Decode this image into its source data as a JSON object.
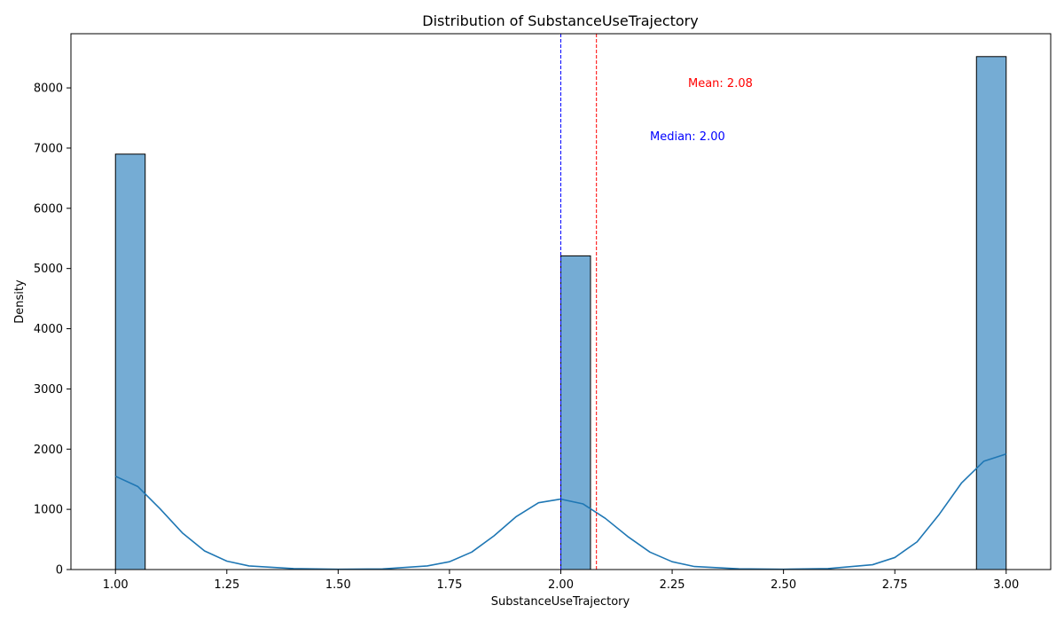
{
  "chart_data": {
    "type": "bar",
    "title": "Distribution of SubstanceUseTrajectory",
    "xlabel": "SubstanceUseTrajectory",
    "ylabel": "Density",
    "xlim": [
      0.9,
      3.1
    ],
    "ylim": [
      0,
      8900
    ],
    "xticks": [
      "1.00",
      "1.25",
      "1.50",
      "1.75",
      "2.00",
      "2.25",
      "2.50",
      "2.75",
      "3.00"
    ],
    "xtick_values": [
      1.0,
      1.25,
      1.5,
      1.75,
      2.0,
      2.25,
      2.5,
      2.75,
      3.0
    ],
    "yticks": [
      "0",
      "1000",
      "2000",
      "3000",
      "4000",
      "5000",
      "6000",
      "7000",
      "8000"
    ],
    "ytick_values": [
      0,
      1000,
      2000,
      3000,
      4000,
      5000,
      6000,
      7000,
      8000
    ],
    "bin_width": 0.0667,
    "bars": [
      {
        "x_start": 1.0,
        "value": 6900
      },
      {
        "x_start": 2.0,
        "value": 5210
      },
      {
        "x_start": 2.9333,
        "value": 8520
      }
    ],
    "kde": {
      "name": "KDE",
      "x": [
        1.0,
        1.05,
        1.1,
        1.15,
        1.2,
        1.25,
        1.3,
        1.4,
        1.5,
        1.6,
        1.7,
        1.75,
        1.8,
        1.85,
        1.9,
        1.95,
        2.0,
        2.05,
        2.1,
        2.15,
        2.2,
        2.25,
        2.3,
        2.4,
        2.5,
        2.6,
        2.7,
        2.75,
        2.8,
        2.85,
        2.9,
        2.95,
        3.0
      ],
      "y": [
        1550,
        1380,
        1010,
        610,
        310,
        140,
        60,
        15,
        5,
        10,
        60,
        130,
        290,
        560,
        880,
        1110,
        1170,
        1090,
        850,
        550,
        290,
        130,
        50,
        12,
        5,
        15,
        80,
        200,
        460,
        920,
        1440,
        1800,
        1920
      ]
    },
    "mean": {
      "value": 2.08,
      "label": "Mean: 2.08",
      "color": "#ff0000"
    },
    "median": {
      "value": 2.0,
      "label": "Median: 2.00",
      "color": "#0000ff"
    },
    "bar_color": "#75acd4",
    "kde_color": "#1f77b4"
  }
}
